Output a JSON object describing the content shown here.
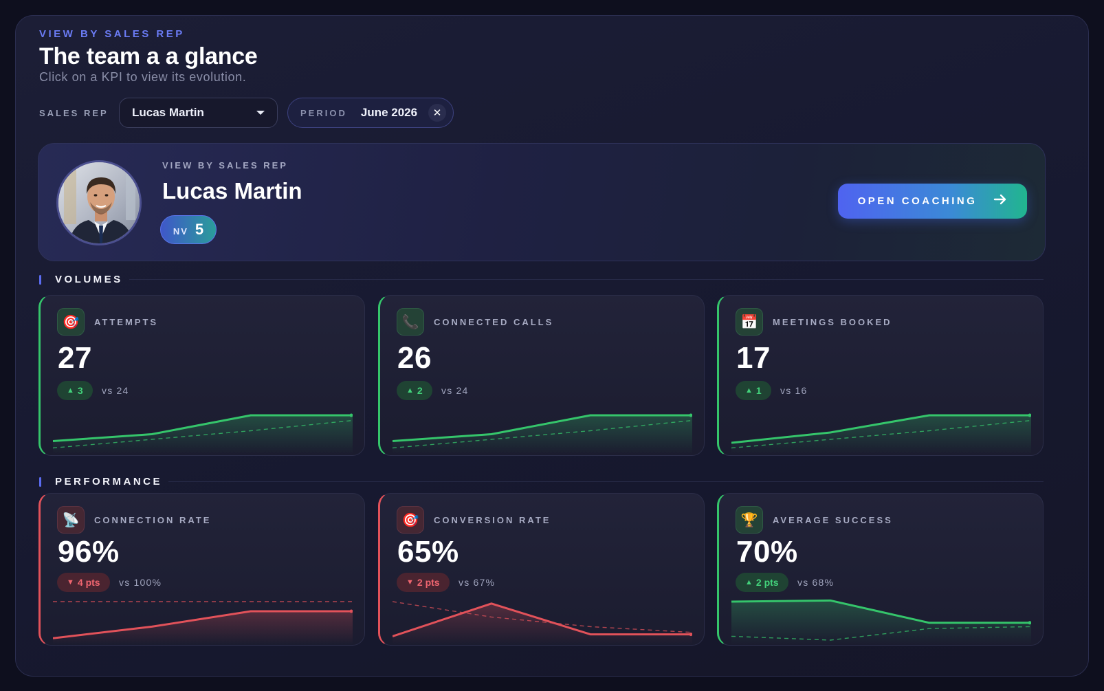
{
  "header": {
    "eyebrow": "VIEW BY SALES REP",
    "title": "The team a a glance",
    "subtitle": "Click on a KPI to view its evolution."
  },
  "filters": {
    "rep_label": "SALES REP",
    "rep_value": "Lucas Martin",
    "period_label": "PERIOD",
    "period_value": "June 2026",
    "clear_glyph": "✕"
  },
  "profile": {
    "eyebrow": "VIEW BY SALES REP",
    "name": "Lucas Martin",
    "level_label": "NV",
    "level_value": "5",
    "coach_label": "OPEN COACHING",
    "coach_arrow": "→"
  },
  "sections": {
    "volumes": "VOLUMES",
    "performance": "PERFORMANCE"
  },
  "colors": {
    "up": "#35c56b",
    "down": "#e2525a"
  },
  "kpis": [
    {
      "id": "attempts",
      "icon": "target-icon",
      "glyph": "🎯",
      "label": "ATTEMPTS",
      "value": "27",
      "trend": "up",
      "delta": "3",
      "vs": "vs 24",
      "series": [
        0.25,
        0.45,
        1,
        1
      ],
      "baseline": [
        0.05,
        0.3,
        0.55,
        0.85
      ]
    },
    {
      "id": "connected-calls",
      "icon": "phone-icon",
      "glyph": "📞",
      "label": "CONNECTED CALLS",
      "value": "26",
      "trend": "up",
      "delta": "2",
      "vs": "vs 24",
      "series": [
        0.25,
        0.45,
        1,
        1
      ],
      "baseline": [
        0.05,
        0.3,
        0.55,
        0.85
      ]
    },
    {
      "id": "meetings-booked",
      "icon": "calendar-icon",
      "glyph": "📅",
      "label": "MEETINGS BOOKED",
      "value": "17",
      "trend": "up",
      "delta": "1",
      "vs": "vs 16",
      "series": [
        0.2,
        0.5,
        1,
        1
      ],
      "baseline": [
        0.05,
        0.3,
        0.55,
        0.85
      ]
    },
    {
      "id": "connection-rate",
      "icon": "satellite-icon",
      "glyph": "📡",
      "label": "CONNECTION RATE",
      "value": "96%",
      "trend": "down",
      "delta": "4 pts",
      "vs": "vs 100%",
      "series": [
        0.05,
        0.35,
        0.75,
        0.75
      ],
      "baseline": [
        1,
        1,
        1,
        1
      ]
    },
    {
      "id": "conversion-rate",
      "icon": "target-icon",
      "glyph": "🎯",
      "label": "CONVERSION RATE",
      "value": "65%",
      "trend": "down",
      "delta": "2 pts",
      "vs": "vs 67%",
      "series": [
        0.1,
        0.95,
        0.15,
        0.15
      ],
      "baseline": [
        1,
        0.6,
        0.35,
        0.2
      ]
    },
    {
      "id": "average-success",
      "icon": "trophy-icon",
      "glyph": "🏆",
      "label": "AVERAGE SUCCESS",
      "value": "70%",
      "trend": "up",
      "delta": "2 pts",
      "vs": "vs 68%",
      "series": [
        1,
        1.03,
        0.45,
        0.45
      ],
      "baseline": [
        0.1,
        0.0,
        0.3,
        0.35
      ]
    }
  ]
}
